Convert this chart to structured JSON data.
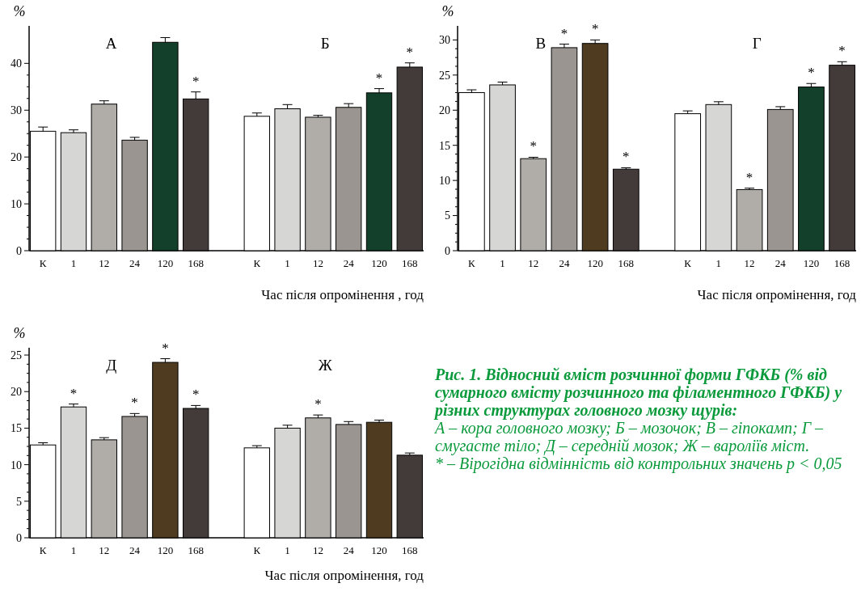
{
  "chart_data": [
    {
      "type": "bar",
      "ylabel": "%",
      "xlabel": "Час після опромінення , год",
      "annotations": [
        "А",
        "Б"
      ],
      "categories": [
        "К",
        "1",
        "12",
        "24",
        "120",
        "168",
        null,
        "К",
        "1",
        "12",
        "24",
        "120",
        "168"
      ],
      "values": [
        25.5,
        25.2,
        31.3,
        23.6,
        44.5,
        32.4,
        null,
        28.7,
        30.3,
        28.5,
        30.6,
        33.7,
        39.2
      ],
      "errors": [
        0.9,
        0.6,
        0.7,
        0.6,
        1.0,
        1.5,
        null,
        0.7,
        0.9,
        0.4,
        0.8,
        0.9,
        0.9
      ],
      "value_labels": [
        null,
        null,
        null,
        null,
        null,
        "*",
        null,
        null,
        null,
        null,
        null,
        "*",
        "*"
      ],
      "colors": [
        "#ffffff",
        "#d6d6d4",
        "#b0aca8",
        "#9a9590",
        "#13402a",
        "#433b39",
        null,
        "#ffffff",
        "#d6d6d4",
        "#b0aca8",
        "#9a9590",
        "#13402a",
        "#433b39"
      ],
      "ylim": [
        0,
        48
      ],
      "yticks": [
        0,
        10,
        20,
        30,
        40
      ],
      "grid": false
    },
    {
      "type": "bar",
      "ylabel": "%",
      "xlabel": "Час після опромінення, год",
      "annotations": [
        "В",
        "Г"
      ],
      "categories": [
        "К",
        "1",
        "12",
        "24",
        "120",
        "168",
        null,
        "К",
        "1",
        "12",
        "24",
        "120",
        "168"
      ],
      "values": [
        22.5,
        23.6,
        13.1,
        28.9,
        29.5,
        11.6,
        null,
        19.5,
        20.8,
        8.7,
        20.1,
        23.3,
        26.4
      ],
      "errors": [
        0.4,
        0.4,
        0.2,
        0.5,
        0.5,
        0.2,
        null,
        0.4,
        0.4,
        0.2,
        0.4,
        0.5,
        0.5
      ],
      "value_labels": [
        null,
        null,
        "*",
        "*",
        "*",
        "*",
        null,
        null,
        null,
        "*",
        null,
        "*",
        "*"
      ],
      "colors": [
        "#ffffff",
        "#d6d6d4",
        "#b0aca8",
        "#9a9590",
        "#4f3c20",
        "#433b39",
        null,
        "#ffffff",
        "#d6d6d4",
        "#b0aca8",
        "#9a9590",
        "#13402a",
        "#433b39"
      ],
      "ylim": [
        0,
        32
      ],
      "yticks": [
        0,
        5,
        10,
        15,
        20,
        25,
        30
      ],
      "grid": false
    },
    {
      "type": "bar",
      "ylabel": "%",
      "xlabel": "Час після опромінення, год",
      "annotations": [
        "Д",
        "Ж"
      ],
      "categories": [
        "К",
        "1",
        "12",
        "24",
        "120",
        "168",
        null,
        "К",
        "1",
        "12",
        "24",
        "120",
        "168"
      ],
      "values": [
        12.7,
        17.9,
        13.4,
        16.6,
        24.0,
        17.7,
        null,
        12.3,
        15.0,
        16.4,
        15.5,
        15.8,
        11.3
      ],
      "errors": [
        0.3,
        0.4,
        0.3,
        0.4,
        0.5,
        0.4,
        null,
        0.3,
        0.4,
        0.4,
        0.4,
        0.3,
        0.3
      ],
      "value_labels": [
        null,
        "*",
        null,
        "*",
        "*",
        "*",
        null,
        null,
        null,
        "*",
        null,
        null,
        null
      ],
      "colors": [
        "#ffffff",
        "#d6d6d4",
        "#b0aca8",
        "#9a9590",
        "#4f3c20",
        "#433b39",
        null,
        "#ffffff",
        "#d6d6d4",
        "#b0aca8",
        "#9a9590",
        "#4f3c20",
        "#433b39"
      ],
      "ylim": [
        0,
        26
      ],
      "yticks": [
        0,
        5,
        10,
        15,
        20,
        25
      ],
      "grid": false
    },
    {
      "type": "other",
      "title": "Рис. 1. Відносний вміст розчинної форми ГФКБ (% від сумарного вмісту розчинного та філаментного ГФКБ) у різних структурах головного мозку щурів:",
      "annotations": [
        "А – кора головного мозку; Б – мозочок; В – гіпокамп; Г – смугасте тіло; Д – середній мозок; Ж – вароліїв міст.",
        "* – Вірогідна відмінність від контрольних значень p < 0,05"
      ]
    }
  ]
}
